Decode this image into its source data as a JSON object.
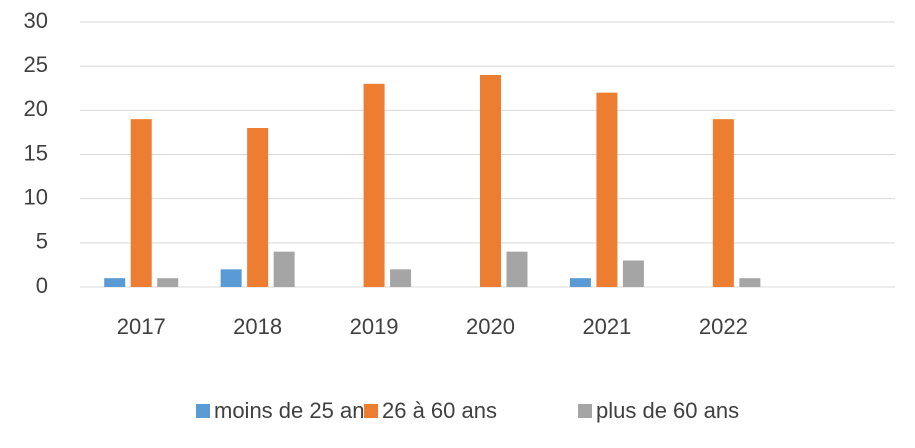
{
  "chart_data": {
    "type": "bar",
    "categories": [
      "2017",
      "2018",
      "2019",
      "2020",
      "2021",
      "2022",
      null
    ],
    "series": [
      {
        "name": "moins de 25 ans",
        "color": "#5b9bd5",
        "values": [
          1,
          2,
          0,
          0,
          1,
          0,
          null
        ]
      },
      {
        "name": "26 à 60 ans",
        "color": "#ed7d31",
        "values": [
          19,
          18,
          23,
          24,
          22,
          19,
          null
        ]
      },
      {
        "name": "plus de 60 ans",
        "color": "#a5a5a5",
        "values": [
          1,
          4,
          2,
          4,
          3,
          1,
          null
        ]
      }
    ],
    "ylim": [
      0,
      30
    ],
    "yticks": [
      0,
      5,
      10,
      15,
      20,
      25,
      30
    ],
    "grid": true,
    "legend": "bottom"
  }
}
